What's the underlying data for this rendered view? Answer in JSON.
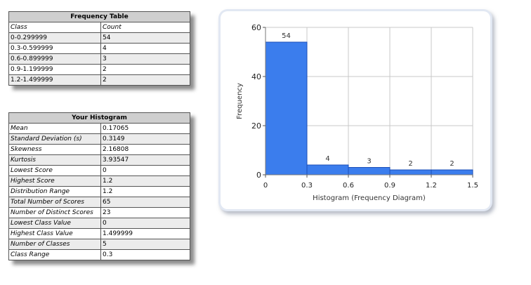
{
  "frequency_table": {
    "title": "Frequency Table",
    "columns": [
      "Class",
      "Count"
    ],
    "rows": [
      [
        "0-0.299999",
        "54"
      ],
      [
        "0.3-0.599999",
        "4"
      ],
      [
        "0.6-0.899999",
        "3"
      ],
      [
        "0.9-1.199999",
        "2"
      ],
      [
        "1.2-1.499999",
        "2"
      ]
    ]
  },
  "histogram_stats": {
    "title": "Your Histogram",
    "rows": [
      [
        "Mean",
        "0.17065"
      ],
      [
        "Standard Deviation (s)",
        "0.3149"
      ],
      [
        "Skewness",
        "2.16808"
      ],
      [
        "Kurtosis",
        "3.93547"
      ],
      [
        "Lowest Score",
        "0"
      ],
      [
        "Highest Score",
        "1.2"
      ],
      [
        "Distribution Range",
        "1.2"
      ],
      [
        "Total Number of Scores",
        "65"
      ],
      [
        "Number of Distinct Scores",
        "23"
      ],
      [
        "Lowest Class Value",
        "0"
      ],
      [
        "Highest Class Value",
        "1.499999"
      ],
      [
        "Number of Classes",
        "5"
      ],
      [
        "Class Range",
        "0.3"
      ]
    ]
  },
  "colors": {
    "bar": "#3b7ded",
    "bar_edge": "#1d4fb8",
    "header_bg": "#cfcfcf"
  },
  "chart_data": {
    "type": "bar",
    "title": "",
    "xlabel": "Histogram (Frequency Diagram)",
    "ylabel": "Frequency",
    "bins": [
      [
        0,
        0.3
      ],
      [
        0.3,
        0.6
      ],
      [
        0.6,
        0.9
      ],
      [
        0.9,
        1.2
      ],
      [
        1.2,
        1.5
      ]
    ],
    "values": [
      54,
      4,
      3,
      2,
      2
    ],
    "data_labels": [
      "54",
      "4",
      "3",
      "2",
      "2"
    ],
    "xticks": [
      "0",
      "0.3",
      "0.6",
      "0.9",
      "1.2",
      "1.5"
    ],
    "yticks": [
      "0",
      "20",
      "40",
      "60"
    ],
    "xlim": [
      0,
      1.5
    ],
    "ylim": [
      0,
      60
    ],
    "grid": true,
    "legend": "none"
  }
}
